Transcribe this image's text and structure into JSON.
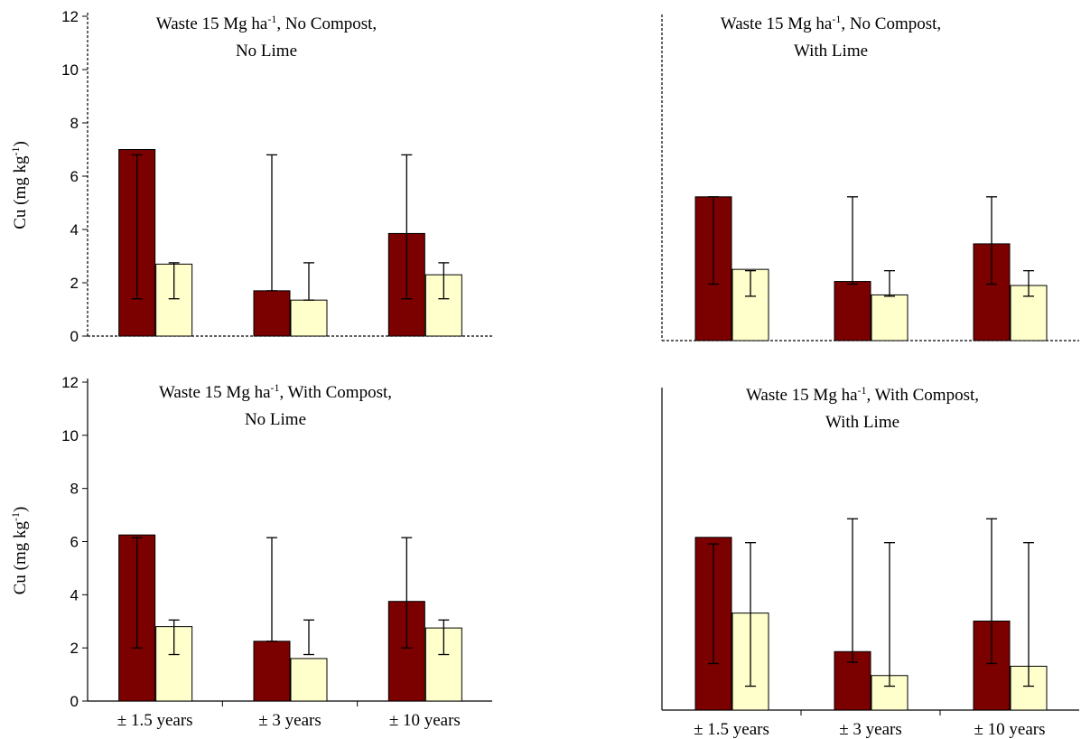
{
  "chart_data": [
    {
      "type": "bar",
      "title": {
        "text": "Waste 15 Mg ha",
        "sup": "-1",
        "rest": ", No Compost,",
        "line2": "No Lime"
      },
      "ylabel": {
        "text": "Cu (mg kg",
        "sup": "-1",
        "rest": ")"
      },
      "categories": [
        null,
        null,
        null
      ],
      "ylim": [
        0,
        12
      ],
      "yticks": [
        0,
        2,
        4,
        6,
        8,
        10,
        12
      ],
      "series": [
        {
          "color": "#7b0000",
          "values": [
            7.0,
            1.7,
            3.85
          ],
          "err_lo": [
            1.4,
            1.7,
            1.4
          ],
          "err_hi": [
            6.8,
            6.8,
            6.8
          ]
        },
        {
          "color": "#ffffcc",
          "values": [
            2.7,
            1.35,
            2.3
          ],
          "err_lo": [
            1.4,
            1.35,
            1.4
          ],
          "err_hi": [
            2.75,
            2.75,
            2.75
          ]
        }
      ]
    },
    {
      "type": "bar",
      "title": {
        "text": "Waste 15 Mg ha",
        "sup": "-1",
        "rest": ", No Compost,",
        "line2": "With Lime"
      },
      "categories": [
        null,
        null,
        null
      ],
      "ylim": [
        0,
        12
      ],
      "series": [
        {
          "color": "#7b0000",
          "values": [
            5.35,
            2.2,
            3.6
          ],
          "err_lo": [
            2.1,
            2.1,
            2.1
          ],
          "err_hi": [
            5.35,
            5.35,
            5.35
          ]
        },
        {
          "color": "#ffffcc",
          "values": [
            2.65,
            1.7,
            2.05
          ],
          "err_lo": [
            1.65,
            1.65,
            1.65
          ],
          "err_hi": [
            2.6,
            2.6,
            2.6
          ]
        }
      ]
    },
    {
      "type": "bar",
      "title": {
        "text": "Waste 15 Mg ha",
        "sup": "-1",
        "rest": ", With Compost,",
        "line2": "No Lime"
      },
      "ylabel": {
        "text": "Cu (mg kg",
        "sup": "-1",
        "rest": ")"
      },
      "categories": [
        "± 1.5 years",
        "± 3 years",
        "± 10 years"
      ],
      "ylim": [
        0,
        12
      ],
      "yticks": [
        0,
        2,
        4,
        6,
        8,
        10,
        12
      ],
      "series": [
        {
          "color": "#7b0000",
          "values": [
            6.25,
            2.25,
            3.75
          ],
          "err_lo": [
            2.0,
            2.25,
            2.0
          ],
          "err_hi": [
            6.15,
            6.15,
            6.15
          ]
        },
        {
          "color": "#ffffcc",
          "values": [
            2.8,
            1.6,
            2.75
          ],
          "err_lo": [
            1.75,
            1.75,
            1.75
          ],
          "err_hi": [
            3.05,
            3.05,
            3.05
          ]
        }
      ]
    },
    {
      "type": "bar",
      "title": {
        "text": "Waste 15 Mg ha",
        "sup": "-1",
        "rest": ", With Compost,",
        "line2": "With Lime"
      },
      "categories": [
        "± 1.5 years",
        "± 3 years",
        "± 10 years"
      ],
      "ylim": [
        0,
        12
      ],
      "series": [
        {
          "color": "#7b0000",
          "values": [
            6.5,
            2.2,
            3.35
          ],
          "err_lo": [
            1.75,
            1.8,
            1.75
          ],
          "err_hi": [
            6.25,
            7.2,
            7.2
          ]
        },
        {
          "color": "#ffffcc",
          "values": [
            3.65,
            1.3,
            1.65
          ],
          "err_lo": [
            0.9,
            0.9,
            0.9
          ],
          "err_hi": [
            6.3,
            6.3,
            6.3
          ]
        }
      ]
    }
  ]
}
